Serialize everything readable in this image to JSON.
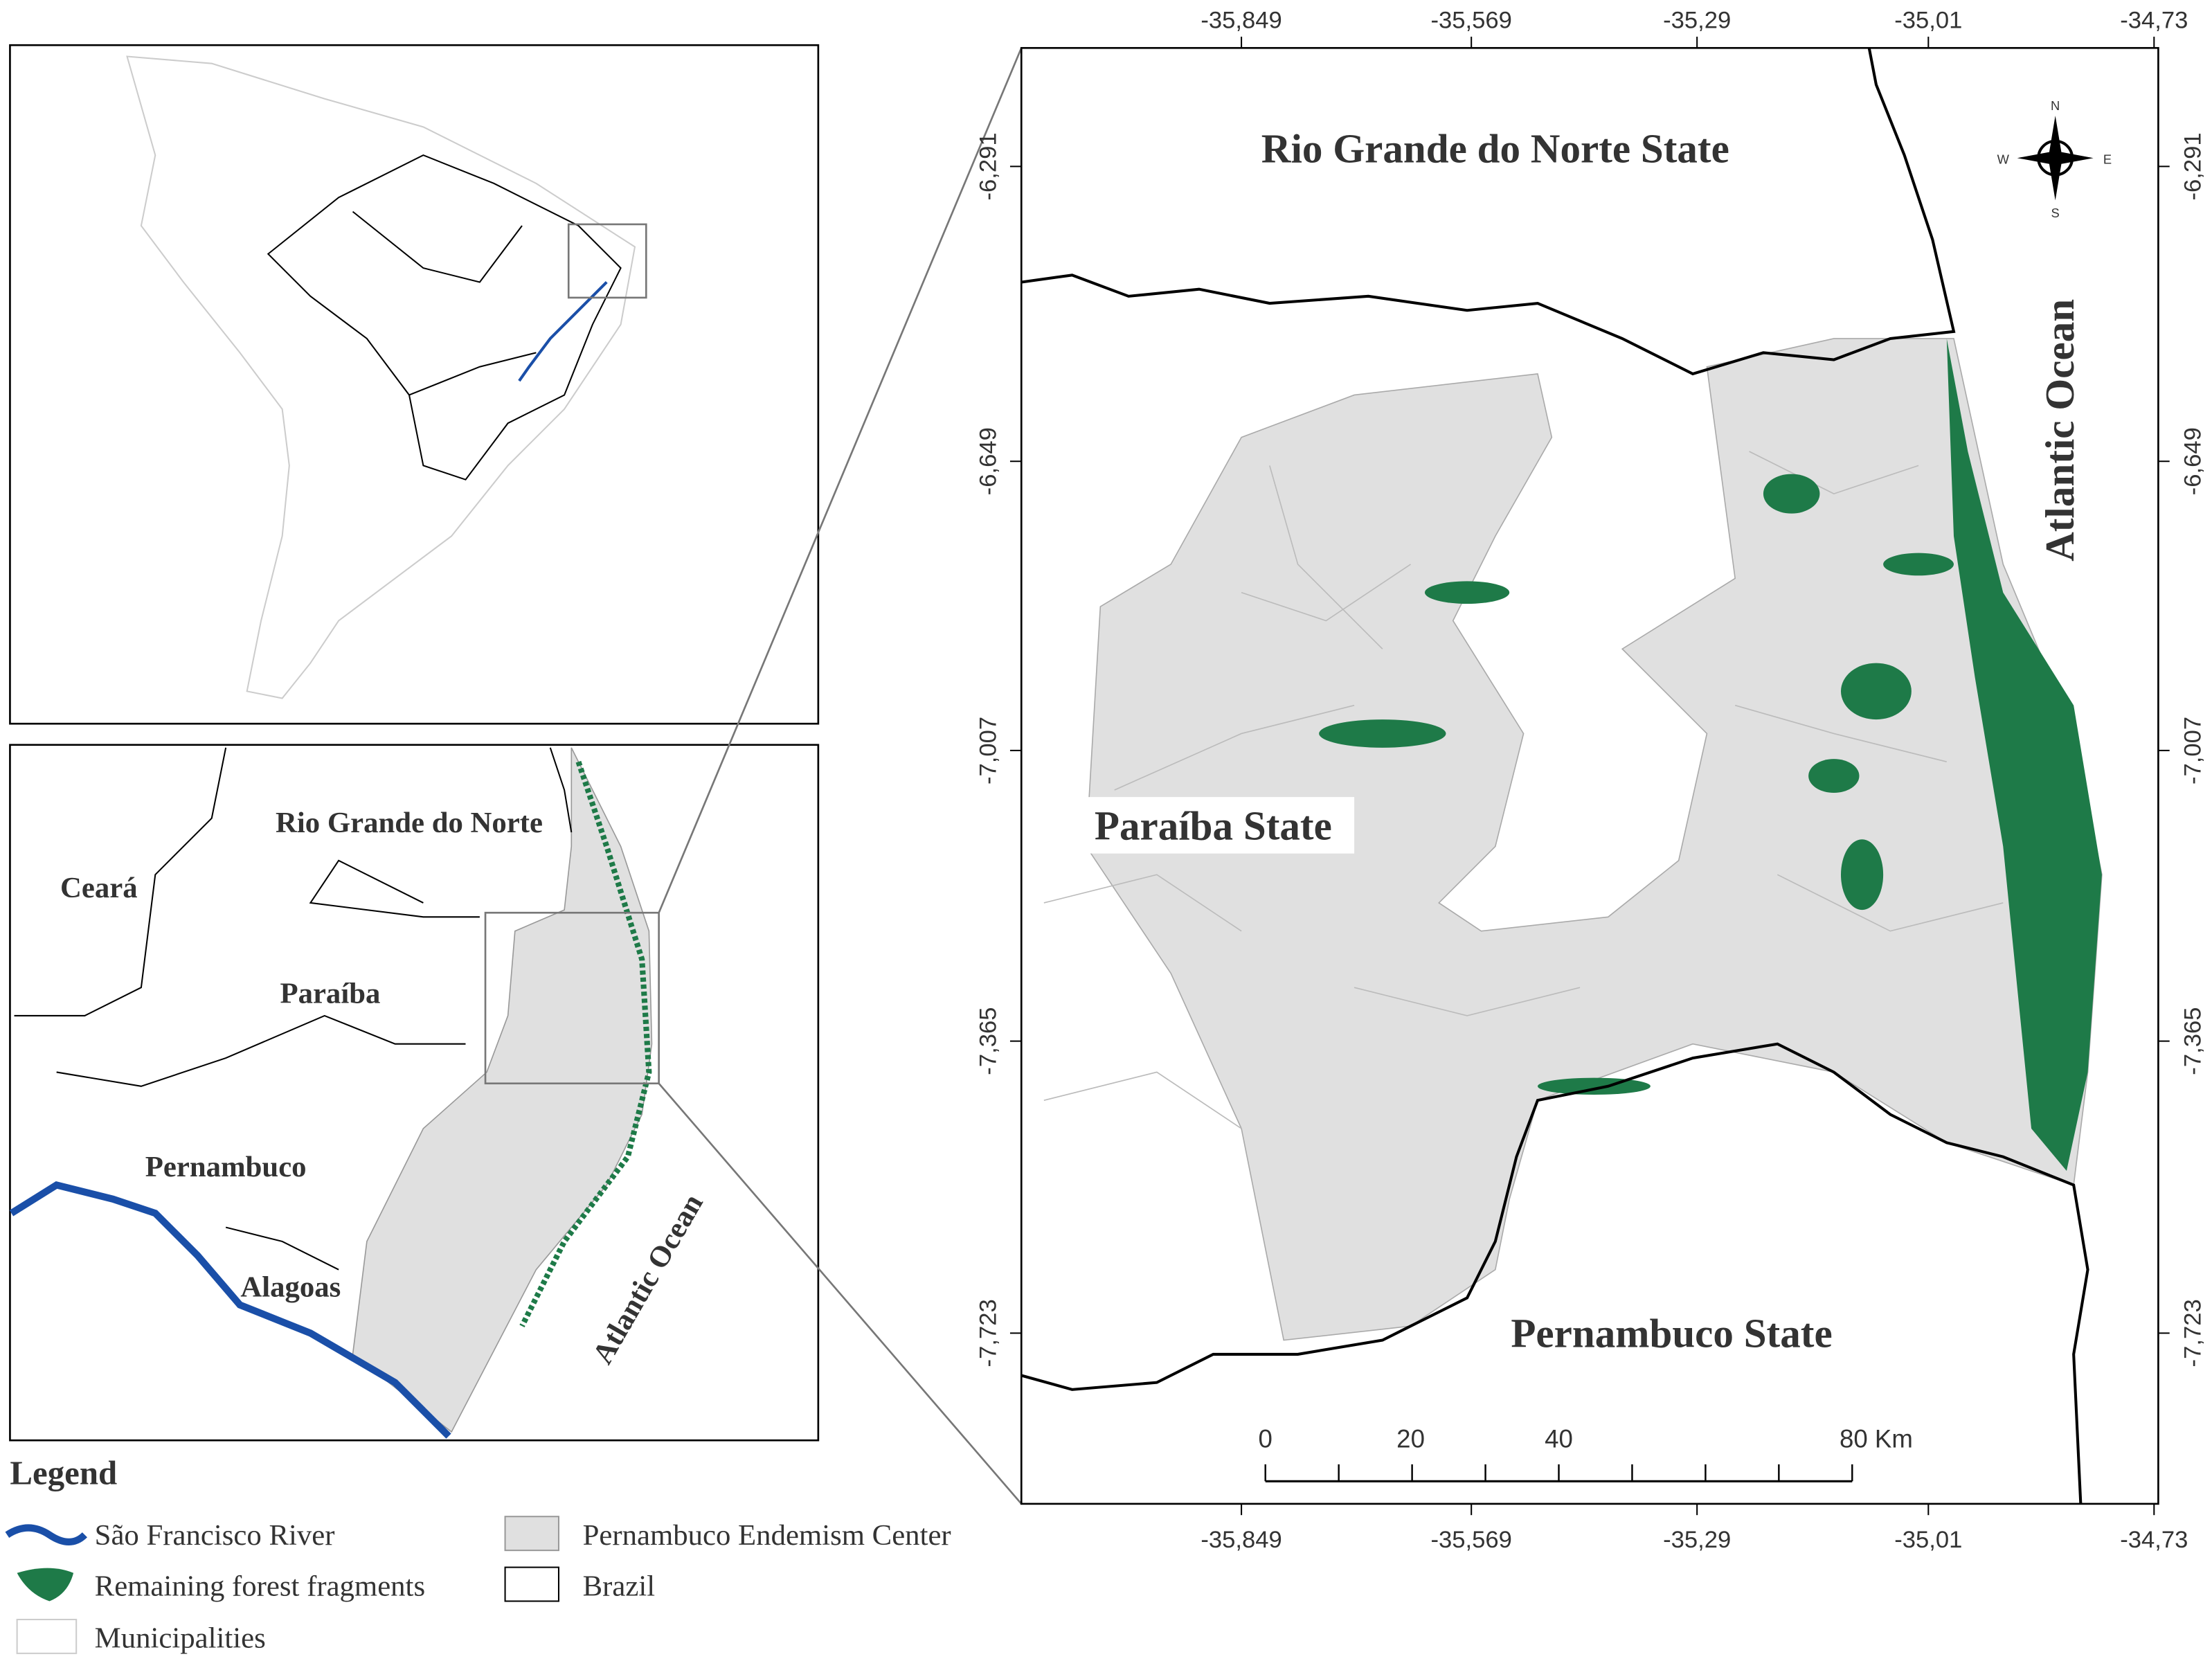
{
  "inset_region": {
    "labels": [
      "Rio Grande do Norte",
      "Ceará",
      "Paraíba",
      "Pernambuco",
      "Alagoas",
      "Atlantic Ocean"
    ]
  },
  "main_map": {
    "labels": {
      "rn": "Rio Grande do Norte State",
      "pb": "Paraíba State",
      "pe": "Pernambuco State",
      "ocean": "Atlantic Ocean"
    },
    "x_ticks": [
      "-35,849",
      "-35,569",
      "-35,29",
      "-35,01",
      "-34,73"
    ],
    "y_ticks": [
      "-6,291",
      "-6,649",
      "-7,007",
      "-7,365",
      "-7,723"
    ],
    "compass": {
      "n": "N",
      "s": "S",
      "e": "E",
      "w": "W"
    },
    "scale_bar": [
      "0",
      "20",
      "40",
      "80 Km"
    ]
  },
  "legend": {
    "title": "Legend",
    "items": [
      "São Francisco River",
      "Pernambuco Endemism Center",
      "Remaining forest fragments",
      "Brazil",
      "Municipalities"
    ]
  }
}
